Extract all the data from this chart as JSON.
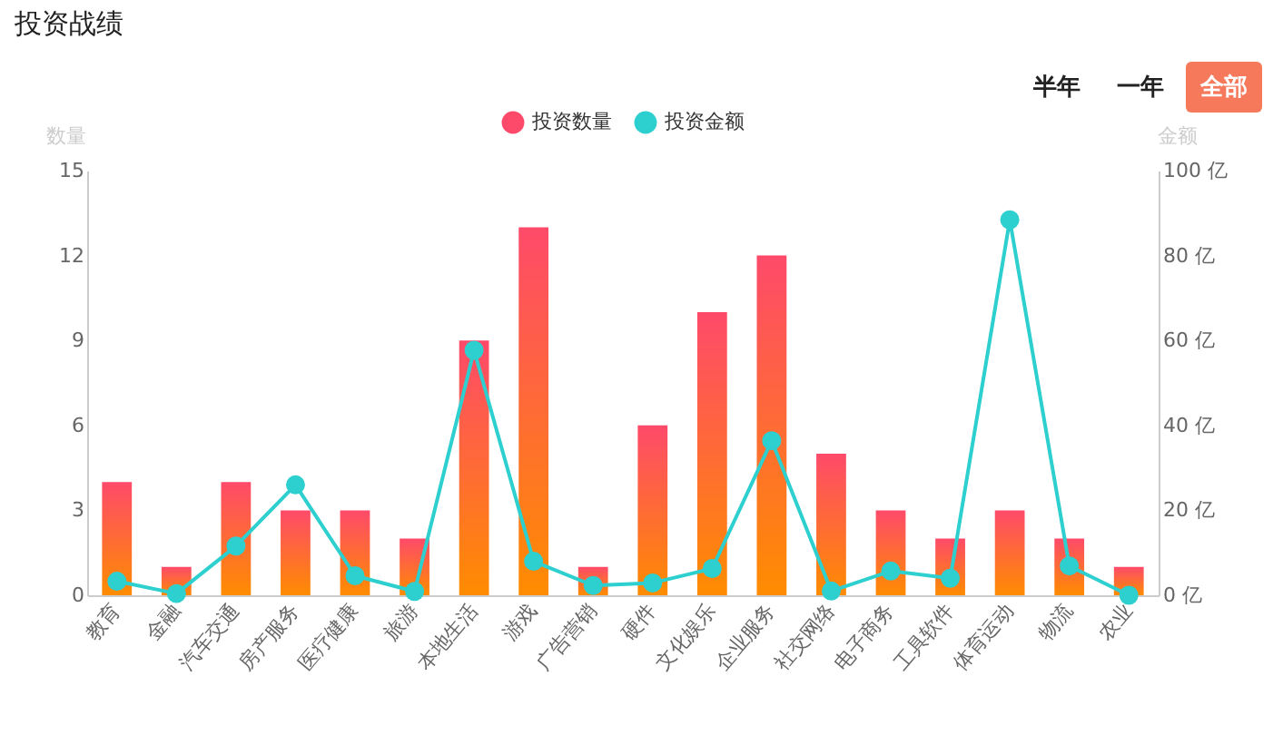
{
  "chart_data": {
    "type": "bar",
    "title": "投资战绩",
    "ylabel": "数量",
    "y2label": "金额",
    "annotations": [
      "半年",
      "一年",
      "全部"
    ],
    "categories": [
      "教育",
      "金融",
      "汽车交通",
      "房产服务",
      "医疗健康",
      "旅游",
      "本地生活",
      "游戏",
      "广告营销",
      "硬件",
      "文化娱乐",
      "企业服务",
      "社交网络",
      "电子商务",
      "工具软件",
      "体育运动",
      "物流",
      "农业"
    ],
    "series": [
      {
        "name": "投资数量",
        "color": "#fe4a6a",
        "values": [
          4,
          1,
          4,
          3,
          3,
          2,
          9,
          13,
          1,
          6,
          10,
          12,
          5,
          3,
          2,
          3,
          2,
          1
        ]
      },
      {
        "name": "投资金额",
        "type": "line",
        "axis": "y2",
        "color": "#2dcfcf",
        "values": [
          3.3,
          0.4,
          11.6,
          26,
          4.6,
          0.9,
          57.7,
          8,
          2.3,
          2.9,
          6.3,
          36.4,
          1,
          5.7,
          4,
          88.4,
          6.9,
          0
        ]
      }
    ],
    "ylim": [
      0,
      15
    ],
    "yticks": [
      0,
      3,
      6,
      9,
      12,
      15
    ],
    "y2lim": [
      0,
      100
    ],
    "y2ticks": [
      {
        "value": 0,
        "label": "0 亿"
      },
      {
        "value": 20,
        "label": "20 亿"
      },
      {
        "value": 40,
        "label": "40 亿"
      },
      {
        "value": 60,
        "label": "60 亿"
      },
      {
        "value": 80,
        "label": "80 亿"
      },
      {
        "value": 100,
        "label": "100 亿"
      }
    ],
    "legend": "top",
    "grid": false,
    "marker": "circle"
  }
}
